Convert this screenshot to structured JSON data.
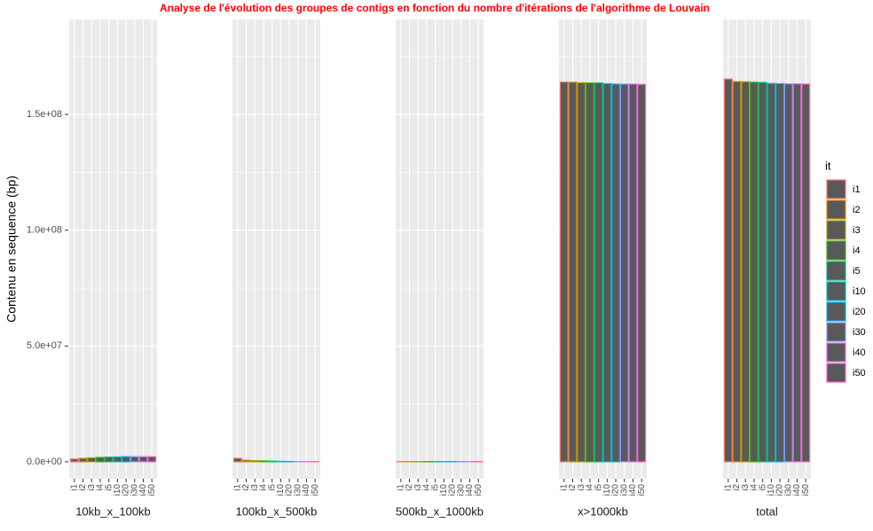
{
  "chart_data": {
    "type": "bar",
    "title": "Analyse de l'évolution des groupes de contigs en fonction du nombre d'itérations de l'algorithme de Louvain",
    "ylabel": "Contenu en sequence (bp)",
    "legend_title": "it",
    "legend": "right",
    "grid": true,
    "fill": "#595959",
    "categories": [
      "i1",
      "i2",
      "i3",
      "i4",
      "i5",
      "i10",
      "i20",
      "i30",
      "i40",
      "i50"
    ],
    "colors": [
      "#F8766D",
      "#D89000",
      "#A3A500",
      "#39B600",
      "#00BF7D",
      "#00BFC4",
      "#00B0F6",
      "#9590FF",
      "#E76BF3",
      "#FF62BC"
    ],
    "facets": [
      {
        "name": "10kb_x_100kb",
        "values": [
          1200000,
          1500000,
          1700000,
          1900000,
          2000000,
          2100000,
          2200000,
          2200000,
          2200000,
          2200000
        ]
      },
      {
        "name": "100kb_x_500kb",
        "values": [
          1500000,
          700000,
          500000,
          400000,
          300000,
          200000,
          150000,
          100000,
          100000,
          100000
        ]
      },
      {
        "name": "500kb_x_1000kb",
        "values": [
          100000,
          100000,
          100000,
          100000,
          100000,
          100000,
          100000,
          100000,
          100000,
          100000
        ]
      },
      {
        "name": "x>1000kb",
        "values": [
          164000000,
          163900000,
          163700000,
          163600000,
          163600000,
          163300000,
          163100000,
          163100000,
          163100000,
          163000000
        ]
      },
      {
        "name": "total",
        "values": [
          165300000,
          164200000,
          164100000,
          163900000,
          163800000,
          163400000,
          163300000,
          163200000,
          163200000,
          163100000
        ]
      }
    ],
    "ylim": [
      -7300000,
      191000000
    ],
    "yticks": [
      {
        "value": 0,
        "label": "0.0e+00"
      },
      {
        "value": 50000000,
        "label": "5.0e+07"
      },
      {
        "value": 100000000,
        "label": "1.0e+08"
      },
      {
        "value": 150000000,
        "label": "1.5e+08"
      }
    ],
    "minor_yticks": [
      25000000,
      75000000,
      125000000,
      175000000
    ]
  }
}
